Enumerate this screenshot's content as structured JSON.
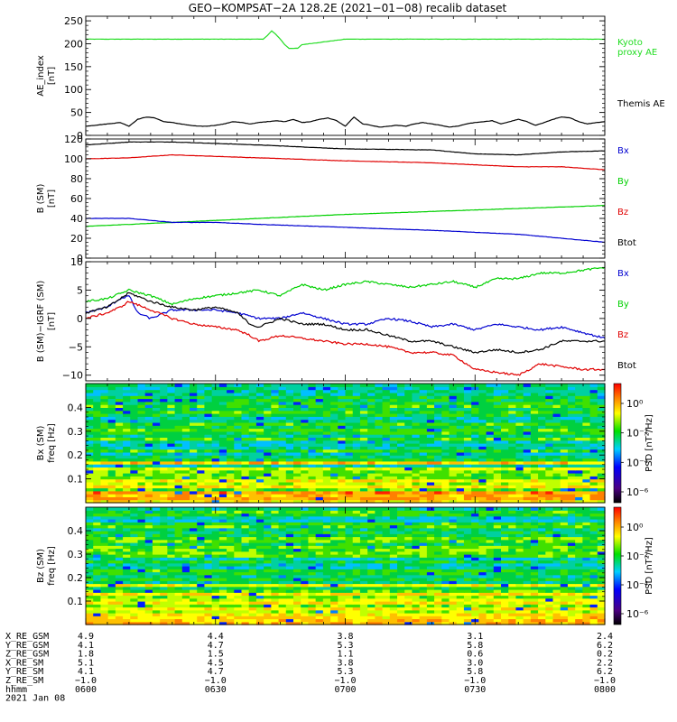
{
  "title": "GEO−KOMPSAT−2A 128.2E (2021−01−08) recalib dataset",
  "colors": {
    "black": "#000000",
    "red": "#e00000",
    "green": "#00d000",
    "blue": "#0000d0",
    "kyoto": "#22dd22"
  },
  "chart_data": [
    {
      "type": "line",
      "panel": "ae",
      "ylabel": [
        "AE_index",
        "[nT]"
      ],
      "yticks": [
        "0",
        "50",
        "100",
        "150",
        "200",
        "250"
      ],
      "ylim": [
        0,
        260
      ],
      "legend": [
        {
          "text": "Kyoto",
          "color": "#22dd22"
        },
        {
          "text": "proxy AE",
          "color": "#22dd22"
        },
        {
          "text": "Themis AE",
          "color": "#000000"
        }
      ],
      "series": [
        {
          "name": "Kyoto proxy AE",
          "color": "#22dd22",
          "x": [
            0,
            41,
            42,
            43,
            44,
            45,
            46,
            47,
            48,
            49,
            50,
            60,
            120
          ],
          "y": [
            210,
            210,
            218,
            228,
            220,
            210,
            198,
            190,
            190,
            190,
            198,
            210,
            210
          ]
        },
        {
          "name": "Themis AE",
          "color": "#000000",
          "x": [
            0,
            2,
            5,
            8,
            10,
            12,
            14,
            16,
            18,
            20,
            22,
            24,
            26,
            28,
            30,
            32,
            34,
            36,
            38,
            40,
            42,
            44,
            46,
            48,
            50,
            52,
            54,
            56,
            58,
            60,
            62,
            64,
            66,
            68,
            70,
            72,
            74,
            76,
            78,
            80,
            82,
            84,
            86,
            88,
            90,
            92,
            94,
            96,
            98,
            100,
            102,
            104,
            106,
            108,
            110,
            112,
            114,
            116,
            118,
            120
          ],
          "y": [
            20,
            22,
            25,
            28,
            20,
            35,
            40,
            38,
            30,
            28,
            25,
            22,
            20,
            20,
            22,
            25,
            30,
            28,
            25,
            28,
            30,
            32,
            30,
            35,
            28,
            30,
            35,
            38,
            32,
            20,
            40,
            25,
            22,
            18,
            20,
            22,
            20,
            25,
            28,
            25,
            22,
            18,
            20,
            25,
            28,
            30,
            32,
            25,
            30,
            35,
            30,
            22,
            28,
            35,
            40,
            38,
            30,
            25,
            28,
            30
          ]
        }
      ]
    },
    {
      "type": "line",
      "panel": "b",
      "ylabel": [
        "B (SM)",
        "[nT]"
      ],
      "yticks": [
        "0",
        "20",
        "40",
        "60",
        "80",
        "100",
        "120"
      ],
      "ylim": [
        0,
        120
      ],
      "legend": [
        {
          "text": "Bx",
          "color": "#0000d0"
        },
        {
          "text": "By",
          "color": "#00d000"
        },
        {
          "text": "Bz",
          "color": "#e00000"
        },
        {
          "text": "Btot",
          "color": "#000000"
        }
      ],
      "series": [
        {
          "name": "Btot",
          "color": "#000000",
          "x": [
            0,
            10,
            20,
            40,
            60,
            80,
            90,
            100,
            110,
            120
          ],
          "y": [
            114,
            117,
            117,
            114,
            110,
            109,
            105,
            104,
            107,
            108
          ]
        },
        {
          "name": "Bz",
          "color": "#e00000",
          "x": [
            0,
            10,
            20,
            40,
            60,
            80,
            90,
            100,
            110,
            120
          ],
          "y": [
            100,
            101,
            104,
            101,
            98,
            96,
            94,
            92,
            92,
            89
          ]
        },
        {
          "name": "By",
          "color": "#00d000",
          "x": [
            0,
            10,
            20,
            30,
            40,
            60,
            80,
            100,
            120
          ],
          "y": [
            32,
            34,
            36,
            38,
            40,
            44,
            47,
            50,
            53
          ]
        },
        {
          "name": "Bx",
          "color": "#0000d0",
          "x": [
            0,
            10,
            20,
            30,
            40,
            60,
            80,
            100,
            110,
            120
          ],
          "y": [
            40,
            40,
            36,
            36,
            34,
            31,
            28,
            24,
            20,
            16
          ]
        }
      ]
    },
    {
      "type": "line",
      "panel": "dbd",
      "ylabel": [
        "B (SM)−IGRF (SM)",
        "[nT]"
      ],
      "yticks": [
        "−10",
        "−5",
        "0",
        "5",
        "10"
      ],
      "ylim": [
        -11,
        10
      ],
      "legend": [
        {
          "text": "Bx",
          "color": "#0000d0"
        },
        {
          "text": "By",
          "color": "#00d000"
        },
        {
          "text": "Bz",
          "color": "#e00000"
        },
        {
          "text": "Btot",
          "color": "#000000"
        }
      ],
      "series": [
        {
          "name": "By",
          "color": "#00d000",
          "x": [
            0,
            5,
            10,
            15,
            20,
            25,
            30,
            35,
            40,
            45,
            50,
            55,
            60,
            65,
            70,
            75,
            80,
            85,
            90,
            95,
            100,
            105,
            110,
            115,
            120
          ],
          "y": [
            3,
            3.5,
            5,
            4,
            2.5,
            3.5,
            4,
            4.5,
            5,
            4,
            6,
            5,
            6,
            6.5,
            6,
            5.5,
            6,
            6.5,
            5.5,
            7,
            7,
            8,
            8,
            8.5,
            9
          ]
        },
        {
          "name": "Bx",
          "color": "#0000d0",
          "x": [
            0,
            5,
            8,
            10,
            12,
            15,
            20,
            25,
            30,
            35,
            40,
            45,
            50,
            55,
            60,
            65,
            70,
            75,
            80,
            85,
            90,
            95,
            100,
            105,
            110,
            115,
            120
          ],
          "y": [
            1,
            2,
            3.5,
            4,
            1,
            0,
            1.5,
            1.5,
            1.5,
            1,
            0,
            0,
            1,
            0,
            -1,
            -1,
            0,
            -0.5,
            -1.5,
            -1,
            -2,
            -1,
            -1.5,
            -2,
            -1.5,
            -2.5,
            -3.5
          ]
        },
        {
          "name": "Btot",
          "color": "#000000",
          "x": [
            0,
            5,
            8,
            10,
            15,
            20,
            25,
            30,
            35,
            38,
            40,
            45,
            50,
            55,
            60,
            65,
            70,
            75,
            80,
            85,
            90,
            95,
            100,
            105,
            110,
            115,
            120
          ],
          "y": [
            1,
            2,
            3.5,
            4.5,
            3,
            2,
            1.5,
            2,
            1,
            -1,
            -1.5,
            0,
            -1,
            -1,
            -2,
            -2,
            -3,
            -4,
            -4,
            -5,
            -6,
            -5.5,
            -6,
            -5.5,
            -4,
            -4,
            -4
          ]
        },
        {
          "name": "Bz",
          "color": "#e00000",
          "x": [
            0,
            5,
            8,
            10,
            15,
            20,
            25,
            30,
            35,
            38,
            40,
            45,
            50,
            55,
            60,
            65,
            70,
            75,
            80,
            85,
            90,
            95,
            100,
            105,
            110,
            115,
            120
          ],
          "y": [
            0,
            1,
            2,
            3,
            1.5,
            0,
            -1,
            -1.5,
            -2,
            -3,
            -4,
            -3,
            -3.5,
            -4,
            -4.5,
            -4.5,
            -5,
            -6,
            -6,
            -6.5,
            -9,
            -9.5,
            -10,
            -8,
            -8.5,
            -9,
            -9
          ]
        }
      ]
    },
    {
      "type": "heatmap",
      "panel": "spec_bx",
      "ylabel": [
        "Bx (SM)",
        "freq [Hz]"
      ],
      "yticks": [
        "0.1",
        "0.2",
        "0.3",
        "0.4"
      ],
      "ylim": [
        0,
        0.5
      ],
      "colorbar": {
        "label": "PSD [nT²/Hz]",
        "ticks": [
          "10⁰",
          "10⁻²",
          "10⁻⁴",
          "10⁻⁶"
        ]
      }
    },
    {
      "type": "heatmap",
      "panel": "spec_bz",
      "ylabel": [
        "Bz (SM)",
        "freq [Hz]"
      ],
      "yticks": [
        "0.1",
        "0.2",
        "0.3",
        "0.4"
      ],
      "ylim": [
        0,
        0.5
      ],
      "colorbar": {
        "label": "PSD [nT²/Hz]",
        "ticks": [
          "10⁰",
          "10⁻²",
          "10⁻⁴",
          "10⁻⁶"
        ]
      }
    }
  ],
  "ephemeris": {
    "labels": [
      "X_RE_GSM",
      "Y_RE_GSM",
      "Z_RE_GSM",
      "X_RE_SM",
      "Y_RE_SM",
      "Z_RE_SM",
      "hhmm"
    ],
    "columns": [
      [
        "4.9",
        "4.1",
        "1.8",
        "5.1",
        "4.1",
        "−1.0",
        "0600"
      ],
      [
        "4.4",
        "4.7",
        "1.5",
        "4.5",
        "4.7",
        "−1.0",
        "0630"
      ],
      [
        "3.8",
        "5.3",
        "1.1",
        "3.8",
        "5.3",
        "−1.0",
        "0700"
      ],
      [
        "3.1",
        "5.8",
        "0.6",
        "3.0",
        "5.8",
        "−1.0",
        "0730"
      ],
      [
        "2.4",
        "6.2",
        "0.2",
        "2.2",
        "6.2",
        "−1.0",
        "0800"
      ]
    ],
    "date": "2021 Jan 08"
  }
}
